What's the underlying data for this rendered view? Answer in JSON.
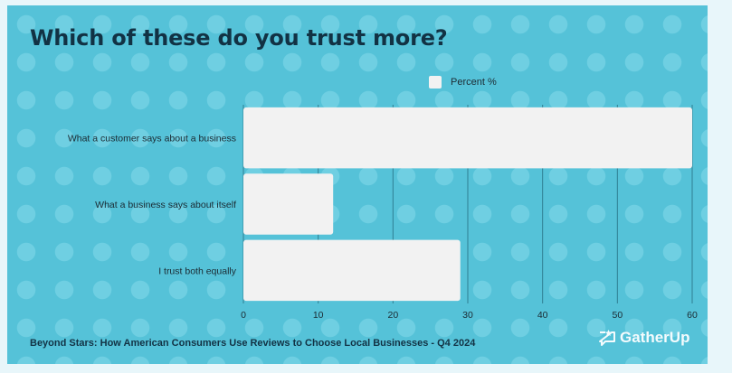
{
  "title": "Which of these do you trust more?",
  "footer": {
    "source": "Beyond Stars: How American Consumers Use Reviews to Choose Local Businesses - Q4 2024",
    "brand": "GatherUp"
  },
  "colors": {
    "background": "#55c2d8",
    "dots": "#6fcfe2",
    "bar": "#f2f2f2",
    "title": "#123244"
  },
  "chart_data": {
    "type": "bar",
    "orientation": "horizontal",
    "title": "Which of these do you trust more?",
    "categories": [
      "What a customer says about a business",
      "What a business says about itself",
      "I trust both equally"
    ],
    "series": [
      {
        "name": "Percent %",
        "values": [
          60,
          12,
          29
        ]
      }
    ],
    "xlim": [
      0,
      60
    ],
    "xticks": [
      0,
      10,
      20,
      30,
      40,
      50,
      60
    ],
    "grid": true,
    "legend": "top"
  }
}
